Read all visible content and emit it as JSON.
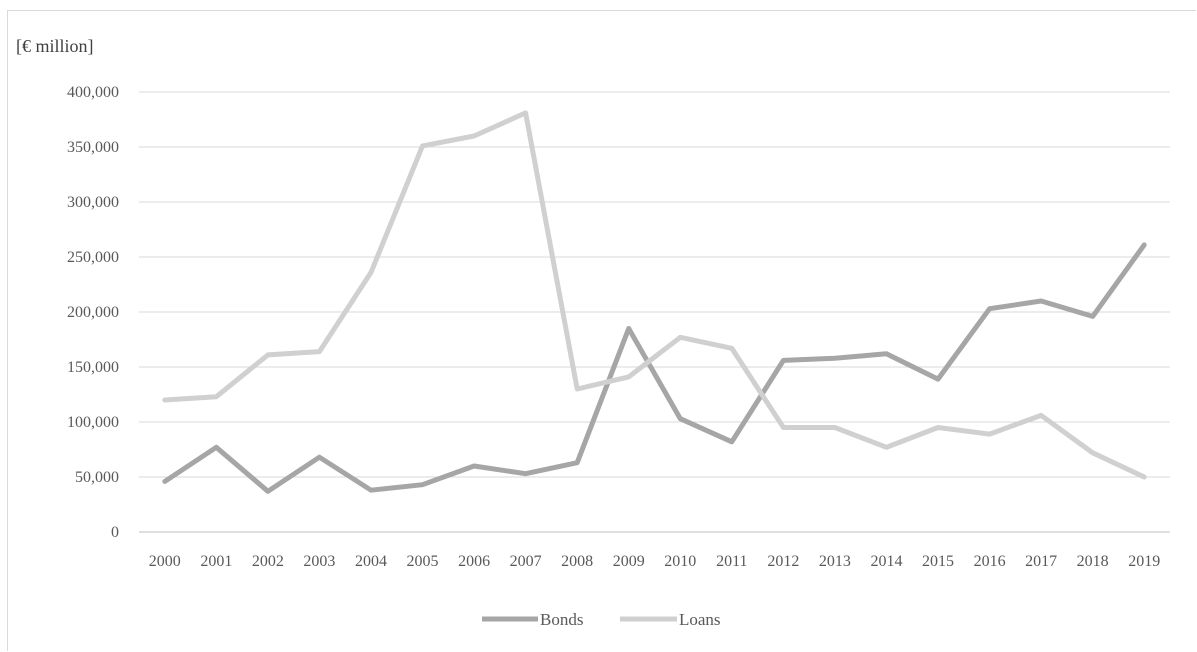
{
  "chart_data": {
    "type": "line",
    "title": "",
    "unit_label": "[€ million]",
    "xlabel": "",
    "ylabel": "",
    "categories": [
      "2000",
      "2001",
      "2002",
      "2003",
      "2004",
      "2005",
      "2006",
      "2007",
      "2008",
      "2009",
      "2010",
      "2011",
      "2012",
      "2013",
      "2014",
      "2015",
      "2016",
      "2017",
      "2018",
      "2019"
    ],
    "y_ticks": [
      "0",
      "50,000",
      "100,000",
      "150,000",
      "200,000",
      "250,000",
      "300,000",
      "350,000",
      "400,000"
    ],
    "ylim": [
      0,
      400000
    ],
    "grid": true,
    "legend_position": "bottom",
    "series": [
      {
        "name": "Bonds",
        "color": "#a6a6a6",
        "values": [
          46000,
          77000,
          37000,
          68000,
          38000,
          43000,
          60000,
          53000,
          63000,
          185000,
          103000,
          82000,
          156000,
          158000,
          162000,
          139000,
          203000,
          210000,
          196000,
          261000
        ]
      },
      {
        "name": "Loans",
        "color": "#d0d0d0",
        "values": [
          120000,
          123000,
          161000,
          164000,
          236000,
          351000,
          360000,
          381000,
          130000,
          141000,
          177000,
          167000,
          95000,
          95000,
          77000,
          95000,
          89000,
          106000,
          72000,
          50000
        ]
      }
    ]
  }
}
